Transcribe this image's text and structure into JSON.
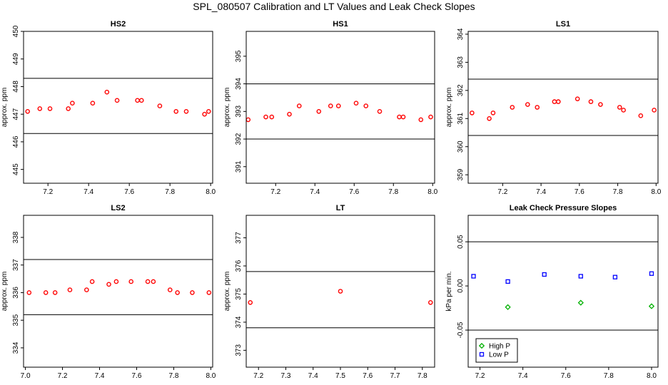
{
  "title": "SPL_080507  Calibration and LT Values and Leak Check Slopes",
  "colors": {
    "red": "#ff0000",
    "green": "#00b000",
    "blue": "#0000ff"
  },
  "chart_data": [
    {
      "type": "scatter",
      "title": "HS2",
      "ylabel": "approx. ppm",
      "xlim": [
        7.08,
        8.01
      ],
      "ylim": [
        444.5,
        450.0
      ],
      "xticks": [
        7.2,
        7.4,
        7.6,
        7.8,
        8.0
      ],
      "xtick_labels": [
        "7.2",
        "7.4",
        "7.6",
        "7.8",
        "8.0"
      ],
      "yticks": [
        445,
        446,
        447,
        448,
        449,
        450
      ],
      "ytick_labels": [
        "445",
        "446",
        "447",
        "448",
        "449",
        "450"
      ],
      "hlines": [
        448.3,
        446.3
      ],
      "series": [
        {
          "color": "red",
          "marker": "circle",
          "x": [
            7.1,
            7.16,
            7.21,
            7.3,
            7.32,
            7.42,
            7.49,
            7.54,
            7.64,
            7.66,
            7.75,
            7.83,
            7.88,
            7.97,
            7.99
          ],
          "y": [
            447.1,
            447.2,
            447.2,
            447.2,
            447.4,
            447.4,
            447.8,
            447.5,
            447.5,
            447.5,
            447.3,
            447.1,
            447.1,
            447.0,
            447.1
          ]
        }
      ]
    },
    {
      "type": "scatter",
      "title": "HS1",
      "ylabel": "approx. ppm",
      "xlim": [
        7.05,
        8.01
      ],
      "ylim": [
        390.4,
        395.9
      ],
      "xticks": [
        7.2,
        7.4,
        7.6,
        7.8,
        8.0
      ],
      "xtick_labels": [
        "7.2",
        "7.4",
        "7.6",
        "7.8",
        "8.0"
      ],
      "yticks": [
        391,
        392,
        393,
        394,
        395
      ],
      "ytick_labels": [
        "391",
        "392",
        "393",
        "394",
        "395"
      ],
      "hlines": [
        394.0,
        392.0
      ],
      "series": [
        {
          "color": "red",
          "marker": "circle",
          "x": [
            7.06,
            7.15,
            7.18,
            7.27,
            7.32,
            7.42,
            7.48,
            7.52,
            7.61,
            7.66,
            7.73,
            7.83,
            7.85,
            7.94,
            7.99
          ],
          "y": [
            392.7,
            392.8,
            392.8,
            392.9,
            393.2,
            393.0,
            393.2,
            393.2,
            393.3,
            393.2,
            393.0,
            392.8,
            392.8,
            392.7,
            392.8
          ]
        }
      ]
    },
    {
      "type": "scatter",
      "title": "LS1",
      "ylabel": "approx. ppm",
      "xlim": [
        7.02,
        8.01
      ],
      "ylim": [
        358.7,
        364.1
      ],
      "xticks": [
        7.2,
        7.4,
        7.6,
        7.8,
        8.0
      ],
      "xtick_labels": [
        "7.2",
        "7.4",
        "7.6",
        "7.8",
        "8.0"
      ],
      "yticks": [
        359,
        360,
        361,
        362,
        363,
        364
      ],
      "ytick_labels": [
        "359",
        "360",
        "361",
        "362",
        "363",
        "364"
      ],
      "hlines": [
        362.4,
        360.4
      ],
      "series": [
        {
          "color": "red",
          "marker": "circle",
          "x": [
            7.04,
            7.13,
            7.15,
            7.25,
            7.33,
            7.38,
            7.47,
            7.49,
            7.59,
            7.66,
            7.71,
            7.81,
            7.83,
            7.92,
            7.99
          ],
          "y": [
            361.2,
            361.0,
            361.2,
            361.4,
            361.5,
            361.4,
            361.6,
            361.6,
            361.7,
            361.6,
            361.5,
            361.4,
            361.3,
            361.1,
            361.3
          ]
        }
      ]
    },
    {
      "type": "scatter",
      "title": "LS2",
      "ylabel": "approx. ppm",
      "xlim": [
        6.99,
        8.01
      ],
      "ylim": [
        333.3,
        338.8
      ],
      "xticks": [
        7.0,
        7.2,
        7.4,
        7.6,
        7.8,
        8.0
      ],
      "xtick_labels": [
        "7.0",
        "7.2",
        "7.4",
        "7.6",
        "7.8",
        "8.0"
      ],
      "yticks": [
        334,
        335,
        336,
        337,
        338
      ],
      "ytick_labels": [
        "334",
        "335",
        "336",
        "337",
        "338"
      ],
      "hlines": [
        337.2,
        335.2
      ],
      "series": [
        {
          "color": "red",
          "marker": "circle",
          "x": [
            7.02,
            7.11,
            7.16,
            7.24,
            7.33,
            7.36,
            7.45,
            7.49,
            7.57,
            7.66,
            7.69,
            7.78,
            7.82,
            7.9,
            7.99
          ],
          "y": [
            336.0,
            336.0,
            336.0,
            336.1,
            336.1,
            336.4,
            336.3,
            336.4,
            336.4,
            336.4,
            336.4,
            336.1,
            336.0,
            336.0,
            336.0
          ]
        }
      ]
    },
    {
      "type": "scatter",
      "title": "LT",
      "ylabel": "approx. ppm",
      "xlim": [
        7.155,
        7.845
      ],
      "ylim": [
        372.4,
        377.8
      ],
      "xticks": [
        7.2,
        7.3,
        7.4,
        7.5,
        7.6,
        7.7,
        7.8
      ],
      "xtick_labels": [
        "7.2",
        "7.3",
        "7.4",
        "7.5",
        "7.6",
        "7.7",
        "7.8"
      ],
      "yticks": [
        373,
        374,
        375,
        376,
        377
      ],
      "ytick_labels": [
        "373",
        "374",
        "375",
        "376",
        "377"
      ],
      "hlines": [
        375.8,
        373.8
      ],
      "series": [
        {
          "color": "red",
          "marker": "circle",
          "x": [
            7.17,
            7.5,
            7.83
          ],
          "y": [
            374.7,
            375.1,
            374.7
          ]
        }
      ]
    },
    {
      "type": "scatter",
      "title": "Leak Check Pressure Slopes",
      "ylabel": "kPa per min.",
      "xlim": [
        7.145,
        8.03
      ],
      "ylim": [
        -0.092,
        0.08
      ],
      "xticks": [
        7.2,
        7.4,
        7.6,
        7.8,
        8.0
      ],
      "xtick_labels": [
        "7.2",
        "7.4",
        "7.6",
        "7.8",
        "8.0"
      ],
      "yticks": [
        -0.05,
        0.0,
        0.05
      ],
      "ytick_labels": [
        "-0.05",
        "0.00",
        "0.05"
      ],
      "hlines": [
        0.05,
        -0.05
      ],
      "legend": {
        "position": "bottom-left",
        "entries": [
          {
            "label": "High P",
            "color": "green"
          },
          {
            "label": "Low P",
            "color": "blue"
          }
        ]
      },
      "series": [
        {
          "name": "High P",
          "color": "green",
          "marker": "diamond",
          "x": [
            7.33,
            7.67,
            8.0
          ],
          "y": [
            -0.024,
            -0.019,
            -0.023
          ]
        },
        {
          "name": "Low P",
          "color": "blue",
          "marker": "square",
          "x": [
            7.17,
            7.33,
            7.5,
            7.67,
            7.83,
            8.0
          ],
          "y": [
            0.011,
            0.005,
            0.013,
            0.011,
            0.01,
            0.014
          ]
        }
      ]
    }
  ]
}
